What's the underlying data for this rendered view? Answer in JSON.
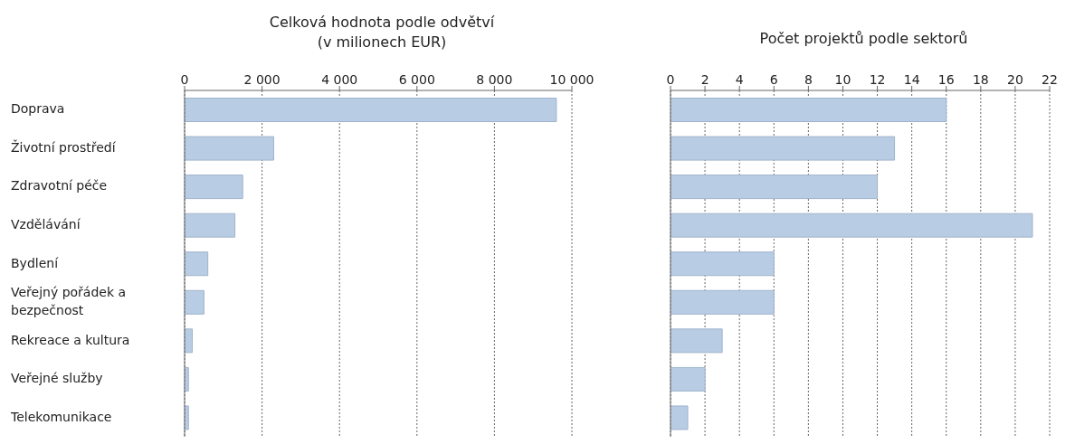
{
  "chart_data": [
    {
      "type": "bar",
      "orientation": "horizontal",
      "title": "Celková hodnota podle odvětví",
      "subtitle": "(v milionech EUR)",
      "categories": [
        "Doprava",
        "Životní prostředí",
        "Zdravotní péče",
        "Vzdělávání",
        "Bydlení",
        "Veřejný pořádek a bezpečnost",
        "Rekreace a kultura",
        "Veřejné služby",
        "Telekomunikace"
      ],
      "values": [
        9600,
        2300,
        1500,
        1300,
        600,
        500,
        200,
        100,
        100
      ],
      "color": "#b8cce4",
      "xlim": [
        0,
        10000
      ],
      "xticks": [
        0,
        {
          "value": 2000,
          "label": "2 000"
        },
        {
          "value": 4000,
          "label": "4 000"
        },
        {
          "value": 6000,
          "label": "6 000"
        },
        {
          "value": 8000,
          "label": "8 000"
        },
        {
          "value": 10000,
          "label": "10 000"
        }
      ],
      "grid": "x"
    },
    {
      "type": "bar",
      "orientation": "horizontal",
      "title": "Počet projektů podle sektorů",
      "categories": [
        null,
        null,
        null,
        null,
        null,
        null,
        null,
        null,
        null
      ],
      "values": [
        16,
        13,
        12,
        21,
        6,
        6,
        3,
        2,
        1
      ],
      "color": "#b8cce4",
      "xlim": [
        0,
        22
      ],
      "xticks": [
        0,
        2,
        4,
        6,
        8,
        10,
        12,
        14,
        16,
        18,
        20,
        22
      ],
      "grid": "x",
      "tick_labels": "x"
    }
  ]
}
